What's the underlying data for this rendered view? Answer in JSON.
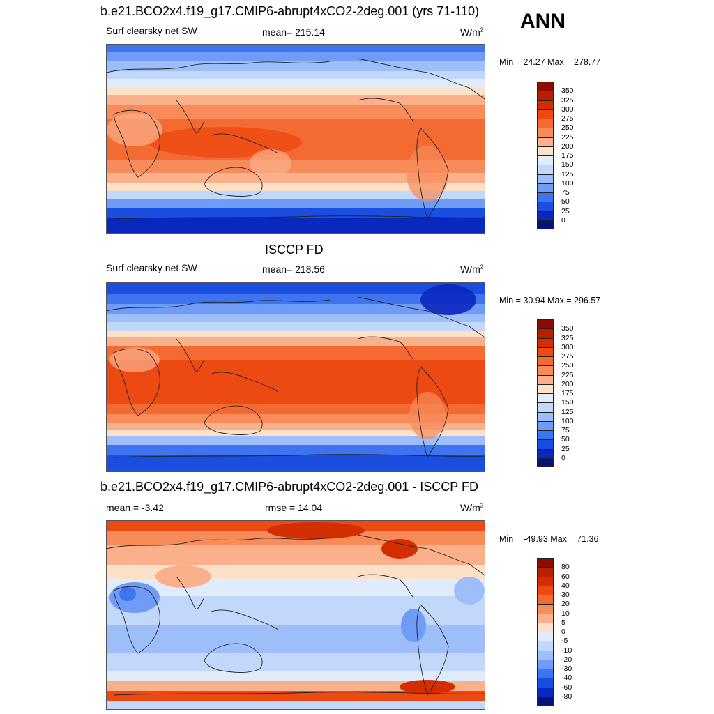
{
  "season": "ANN",
  "panels": [
    {
      "title": "b.e21.BCO2x4.f19_g17.CMIP6-abrupt4xCO2-2deg.001 (yrs 71-110)",
      "left_label": "Surf clearsky net SW",
      "center_label": "mean= 215.14",
      "units_base": "W/m",
      "units_exp": "2",
      "minmax": "Min =  24.27 Max = 278.77"
    },
    {
      "title": "ISCCP FD",
      "left_label": "Surf clearsky net SW",
      "center_label": "mean= 218.56",
      "units_base": "W/m",
      "units_exp": "2",
      "minmax": "Min =  30.94 Max = 296.57"
    },
    {
      "title": "b.e21.BCO2x4.f19_g17.CMIP6-abrupt4xCO2-2deg.001 - ISCCP FD",
      "left_label": "mean =  -3.42",
      "center_label": "rmse =  14.04",
      "units_base": "W/m",
      "units_exp": "2",
      "minmax": "Min = -49.93 Max =  71.36"
    }
  ],
  "colorbars": {
    "absolute": {
      "levels": [
        "350",
        "325",
        "300",
        "275",
        "250",
        "225",
        "200",
        "175",
        "150",
        "125",
        "100",
        "75",
        "50",
        "25",
        "0"
      ],
      "colors": [
        "#8c0a00",
        "#b81e00",
        "#d42e00",
        "#ec4a12",
        "#f36a32",
        "#f78b5a",
        "#fbb08c",
        "#fde0c8",
        "#e0ecfb",
        "#c2d8fa",
        "#9ebefa",
        "#6e9cf6",
        "#3f74f0",
        "#1a4ee0",
        "#0a28c0",
        "#04127a"
      ]
    },
    "difference": {
      "levels": [
        "80",
        "60",
        "40",
        "30",
        "20",
        "10",
        "5",
        "0",
        "-5",
        "-10",
        "-20",
        "-30",
        "-40",
        "-60",
        "-80"
      ],
      "colors": [
        "#8c0a00",
        "#b81e00",
        "#d42e00",
        "#ec4a12",
        "#f36a32",
        "#f78b5a",
        "#fbb08c",
        "#fde0c8",
        "#e0ecfb",
        "#c2d8fa",
        "#9ebefa",
        "#6e9cf6",
        "#3f74f0",
        "#1a4ee0",
        "#0a28c0",
        "#04127a"
      ]
    }
  }
}
